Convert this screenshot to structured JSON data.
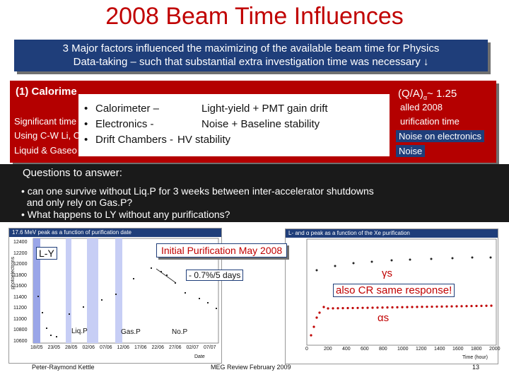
{
  "title": "2008 Beam Time Influences",
  "intro": {
    "line1": "3 Major factors influenced the maximizing of the available beam time for Physics",
    "line2": "Data-taking – such that substantial extra investigation time was necessary",
    "arrow": "↓"
  },
  "calorimeter_box": {
    "heading": "(1) Calorime",
    "ratio": "(Q/A)",
    "ratio_alpha": "α",
    "ratio_value": "~ 1.25",
    "line_sig": "Significant time",
    "line_using": "Using C-W Li, C",
    "line_liquid": "Liquid & Gaseo",
    "right_called": "alled 2008",
    "right_purif": "urification time",
    "noise1": "Noise on electronics",
    "noise2": "Noise"
  },
  "overlay": {
    "items": [
      {
        "bullet": "•",
        "name": "Calorimeter –",
        "desc": "Light-yield + PMT gain drift"
      },
      {
        "bullet": "•",
        "name": "Electronics -",
        "desc": "Noise + Baseline stability"
      },
      {
        "bullet": "•",
        "name": "Drift Chambers -",
        "desc": "HV stability"
      }
    ]
  },
  "questions": {
    "heading": "Questions to answer:",
    "q1a": "• can one survive without Liq.P for 3 weeks between inter-accelerator shutdowns",
    "q1b": "  and only rely on Gas.P?",
    "q2": "• What happens to LY without any purifications?"
  },
  "left_plot": {
    "title": "17.6 MeV peak as a function of purification date",
    "ylabel": "photoelectrons",
    "xlabel": "Date",
    "yticks": [
      "12400",
      "12200",
      "12000",
      "11800",
      "11600",
      "11400",
      "11200",
      "11000",
      "10800",
      "10600"
    ],
    "xticks": [
      "18/05",
      "23/05",
      "28/05",
      "02/06",
      "07/06",
      "12/06",
      "17/06",
      "22/06",
      "27/06",
      "02/07",
      "07/07"
    ],
    "ly_label": "L-Y",
    "drift_label": "- 0.7%/5 days",
    "liqp": "Liq.P",
    "gasp": "Gas.P",
    "nop": "No.P"
  },
  "right_plot": {
    "title": "L- and α peak as a function of the Xe purification",
    "xlabel": "Time (hour)",
    "xticks": [
      "0",
      "200",
      "400",
      "600",
      "800",
      "1000",
      "1200",
      "1400",
      "1600",
      "1800",
      "2000"
    ],
    "gamma_label": "γs",
    "alpha_label": "αs",
    "cr_label": "also CR same response!"
  },
  "pill": "Initial Purification May 2008",
  "footer": {
    "author": "Peter-Raymond Kettle",
    "meeting": "MEG Review February 2009",
    "page": "13"
  },
  "colors": {
    "title_red": "#c00000",
    "navy": "#1f3e7a",
    "box_red": "#b40000"
  }
}
